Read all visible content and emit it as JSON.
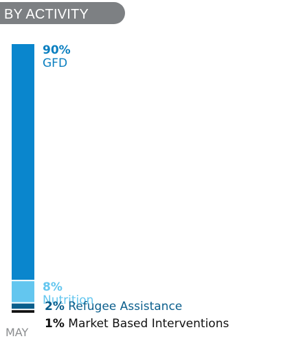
{
  "header": {
    "title": "BY ACTIVITY"
  },
  "chart_data": {
    "type": "bar",
    "stacked": true,
    "categories": [
      "MAY"
    ],
    "series": [
      {
        "name": "GFD",
        "values": [
          90
        ],
        "value_label": "90%",
        "color": "#0a86cd",
        "label_color": "#0a7fc0"
      },
      {
        "name": "Nutrition",
        "values": [
          8
        ],
        "value_label": "8%",
        "color": "#63c6ef",
        "label_color": "#63c6ef"
      },
      {
        "name": "Refugee Assistance",
        "values": [
          2
        ],
        "value_label": "2%",
        "color": "#0a5e8c",
        "label_color": "#0a5e8c"
      },
      {
        "name": "Market Based Interventions",
        "values": [
          1
        ],
        "value_label": "1%",
        "color": "#111111",
        "label_color": "#111111"
      }
    ]
  }
}
